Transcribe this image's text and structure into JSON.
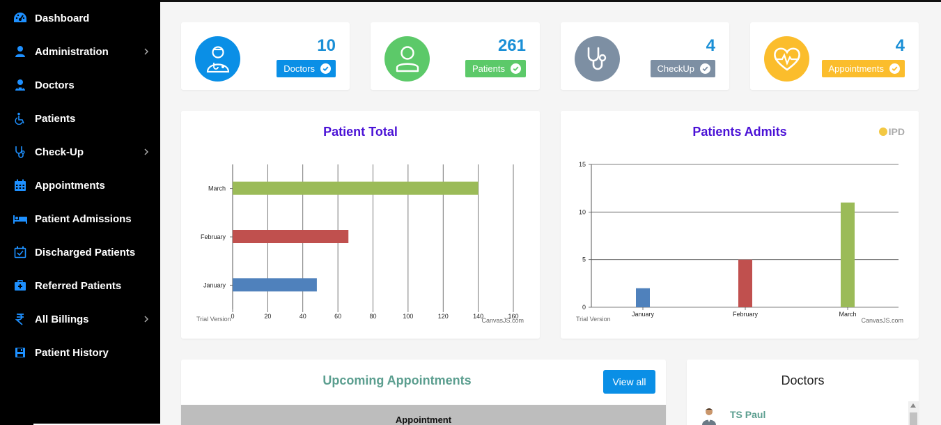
{
  "sidebar": {
    "items": [
      {
        "label": "Dashboard",
        "icon": "dashboard-icon",
        "has_submenu": false
      },
      {
        "label": "Administration",
        "icon": "user-icon",
        "has_submenu": true
      },
      {
        "label": "Doctors",
        "icon": "doctor-icon",
        "has_submenu": false
      },
      {
        "label": "Patients",
        "icon": "wheelchair-icon",
        "has_submenu": false
      },
      {
        "label": "Check-Up",
        "icon": "stethoscope-icon",
        "has_submenu": true
      },
      {
        "label": "Appointments",
        "icon": "calendar-icon",
        "has_submenu": false
      },
      {
        "label": "Patient Admissions",
        "icon": "bed-icon",
        "has_submenu": false
      },
      {
        "label": "Discharged Patients",
        "icon": "calendar-check-icon",
        "has_submenu": false
      },
      {
        "label": "Referred Patients",
        "icon": "medkit-icon",
        "has_submenu": false
      },
      {
        "label": "All Billings",
        "icon": "rupee-icon",
        "has_submenu": true
      },
      {
        "label": "Patient History",
        "icon": "save-icon",
        "has_submenu": false
      }
    ],
    "icon_color": "#1e90ff"
  },
  "stats": [
    {
      "value": "10",
      "label": "Doctors",
      "color": "#0a8fe6",
      "icon": "doctor-icon"
    },
    {
      "value": "261",
      "label": "Patients",
      "color": "#5cc969",
      "icon": "user-outline-icon"
    },
    {
      "value": "4",
      "label": "CheckUp",
      "color": "#7d8fa3",
      "icon": "stethoscope-icon"
    },
    {
      "value": "4",
      "label": "Appointments",
      "color": "#fbbd2c",
      "icon": "heartbeat-icon"
    }
  ],
  "charts": {
    "patient_total": {
      "watermark_left": "Trial Version",
      "watermark_right": "CanvasJS.com"
    },
    "patients_admits": {
      "legend": "IPD",
      "watermark_left": "Trial Version",
      "watermark_right": "CanvasJS.com"
    }
  },
  "chart_data": [
    {
      "type": "bar",
      "orientation": "horizontal",
      "title": "Patient Total",
      "categories": [
        "January",
        "February",
        "March"
      ],
      "values": [
        48,
        66,
        140
      ],
      "colors": [
        "#4f81bc",
        "#c0504e",
        "#9bbb58"
      ],
      "xlim": [
        0,
        160
      ],
      "ticks": [
        0,
        20,
        40,
        60,
        80,
        100,
        120,
        140,
        160
      ],
      "grid": true
    },
    {
      "type": "bar",
      "title": "Patients Admits",
      "categories": [
        "January",
        "February",
        "March"
      ],
      "values": [
        2,
        5,
        11
      ],
      "colors": [
        "#4f81bc",
        "#c0504e",
        "#9bbb58"
      ],
      "ylim": [
        0,
        15
      ],
      "ticks": [
        0,
        5,
        10,
        15
      ],
      "grid": true,
      "legend_placement": "top-right"
    }
  ],
  "appointments": {
    "title": "Upcoming Appointments",
    "view_all_label": "View all",
    "column_header": "Appointment"
  },
  "doctors_panel": {
    "title": "Doctors",
    "items": [
      {
        "name": "TS Paul"
      }
    ]
  }
}
